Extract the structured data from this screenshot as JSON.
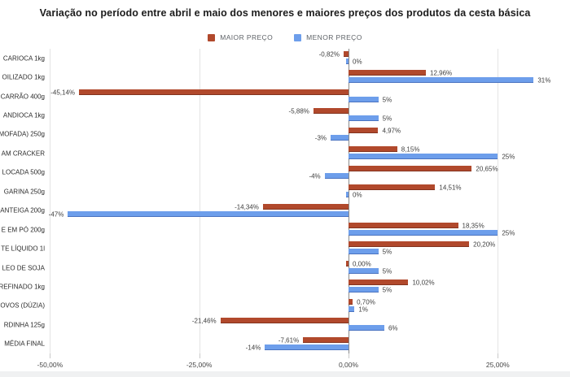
{
  "title": "Variação no período entre abril e maio dos menores e maiores preços dos produtos da cesta básica",
  "legend": [
    {
      "label": "MAIOR PREÇO",
      "color": "#b1492c",
      "edge_color": "#82331f"
    },
    {
      "label": "MENOR PREÇO",
      "color": "#6d9eeb",
      "edge_color": "#4a73c0"
    }
  ],
  "chart_data": {
    "type": "bar",
    "orientation": "horizontal",
    "title": "Variação no período entre abril e maio dos menores e maiores preços dos produtos da cesta básica",
    "grid": true,
    "legend_position": "top",
    "categories": [
      "CARIOCA 1kg",
      "OILIZADO 1kg",
      "CARRÃO 400g",
      "ANDIOCA 1kg",
      "MOFADA) 250g",
      "AM CRACKER",
      "LOCADA 500g",
      "GARINA 250g",
      "ANTEIGA 200g",
      "E EM PÓ 200g",
      "TE LÍQUIDO 1l",
      "LEO DE SOJA",
      "REFINADO 1kg",
      "OVOS (DÚZIA)",
      "RDINHA 125g",
      "MÉDIA FINAL"
    ],
    "series": [
      {
        "name": "MAIOR PREÇO",
        "color": "#b1492c",
        "edge_color": "#82331f",
        "values": [
          -0.82,
          12.96,
          -45.14,
          -5.88,
          4.97,
          8.15,
          20.65,
          14.51,
          -14.34,
          18.35,
          20.2,
          0.0,
          10.02,
          0.7,
          -21.46,
          -7.61
        ],
        "labels": [
          "-0,82%",
          "12,96%",
          "-45,14%",
          "-5,88%",
          "4,97%",
          "8,15%",
          "20,65%",
          "14,51%",
          "-14,34%",
          "18,35%",
          "20,20%",
          "0,00%",
          "10,02%",
          "0,70%",
          "-21,46%",
          "-7,61%"
        ]
      },
      {
        "name": "MENOR PREÇO",
        "color": "#6d9eeb",
        "edge_color": "#4a73c0",
        "values": [
          0,
          31,
          5,
          5,
          -3,
          25,
          -4,
          0,
          -47,
          25,
          5,
          5,
          5,
          1,
          6,
          -14
        ],
        "labels": [
          "0%",
          "31%",
          "5%",
          "5%",
          "-3%",
          "25%",
          "-4%",
          "0%",
          "-47%",
          "25%",
          "5%",
          "5%",
          "5%",
          "1%",
          "6%",
          "-14%"
        ]
      }
    ],
    "x_axis": {
      "tick_labels": [
        "-50,00%",
        "-25,00%",
        "0,00%",
        "25,00%"
      ],
      "tick_values": [
        -50,
        -25,
        0,
        25
      ],
      "range": [
        -50,
        37
      ]
    }
  }
}
